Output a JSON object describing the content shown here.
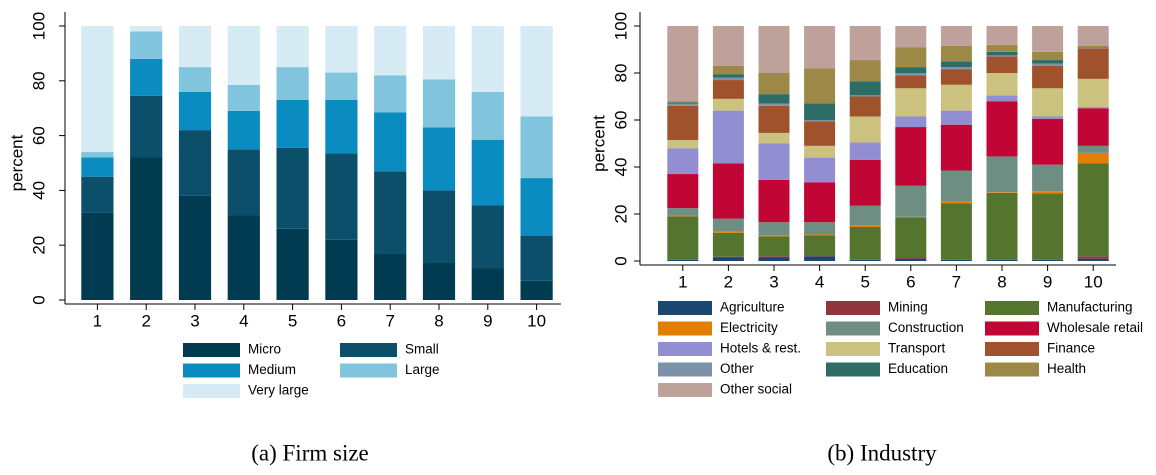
{
  "chart_data": [
    {
      "type": "stacked_bar",
      "ylabel": "percent",
      "caption": "(a) Firm size",
      "grid": false,
      "categories": [
        "1",
        "2",
        "3",
        "4",
        "5",
        "6",
        "7",
        "8",
        "9",
        "10"
      ],
      "ylim": [
        0,
        100
      ],
      "yticks": [
        0,
        20,
        40,
        60,
        80,
        100
      ],
      "series": [
        {
          "name": "Micro",
          "color": "#003b51",
          "values": [
            32,
            52,
            38,
            31,
            26,
            22,
            17,
            13.5,
            11.5,
            7
          ]
        },
        {
          "name": "Small",
          "color": "#0b4f6b",
          "values": [
            13,
            22.5,
            24,
            24,
            29.5,
            31.5,
            30,
            26.5,
            23,
            16.5
          ]
        },
        {
          "name": "Medium",
          "color": "#0a8cc1",
          "values": [
            7,
            13.5,
            14,
            14,
            17.5,
            19.5,
            21.5,
            23,
            24,
            21
          ]
        },
        {
          "name": "Large",
          "color": "#80c4de",
          "values": [
            2,
            10,
            9,
            9.5,
            12,
            10,
            13.5,
            17.5,
            17.5,
            22.5
          ]
        },
        {
          "name": "Very large",
          "color": "#d6ebf4",
          "values": [
            46,
            2,
            15,
            21.5,
            15,
            17,
            18,
            19.5,
            24,
            33
          ]
        }
      ]
    },
    {
      "type": "stacked_bar",
      "ylabel": "percent",
      "caption": "(b) Industry",
      "grid": false,
      "categories": [
        "1",
        "2",
        "3",
        "4",
        "5",
        "6",
        "7",
        "8",
        "9",
        "10"
      ],
      "ylim": [
        0,
        100
      ],
      "yticks": [
        0,
        20,
        40,
        60,
        80,
        100
      ],
      "series": [
        {
          "name": "Agriculture",
          "color": "#1a476f",
          "values": [
            0.5,
            1.5,
            1.5,
            2,
            0.5,
            1,
            0.5,
            0.5,
            0.5,
            1
          ]
        },
        {
          "name": "Mining",
          "color": "#90353b",
          "values": [
            0.3,
            0.3,
            0.5,
            0.5,
            0.3,
            0.5,
            0.3,
            0.3,
            0.3,
            1
          ]
        },
        {
          "name": "Manufacturing",
          "color": "#55752f",
          "values": [
            18.2,
            10.2,
            8.5,
            8.5,
            13.7,
            17,
            23.7,
            28.2,
            27.9,
            39.5
          ]
        },
        {
          "name": "Electricity",
          "color": "#e37e00",
          "values": [
            0.2,
            0.5,
            0.5,
            0.3,
            0.5,
            0.3,
            1,
            0.3,
            1,
            4.5
          ]
        },
        {
          "name": "Construction",
          "color": "#6e8e84",
          "values": [
            3.3,
            5.5,
            5.5,
            5.2,
            8.5,
            13.2,
            13,
            15.2,
            11.3,
            3
          ]
        },
        {
          "name": "Wholesale retail",
          "color": "#c10534",
          "values": [
            14.5,
            23.5,
            18,
            17,
            19.5,
            25,
            19.5,
            23.5,
            19.5,
            16
          ]
        },
        {
          "name": "Hotels & rest.",
          "color": "#938dd2",
          "values": [
            11,
            22.5,
            15.5,
            10.5,
            7.5,
            4.5,
            6,
            2.5,
            1,
            0.5
          ]
        },
        {
          "name": "Transport",
          "color": "#cac27e",
          "values": [
            3.5,
            5,
            4.5,
            5,
            11,
            12,
            11,
            9.5,
            12,
            12
          ]
        },
        {
          "name": "Finance",
          "color": "#a0522d",
          "values": [
            14.5,
            8,
            11.5,
            10.5,
            8.5,
            5.5,
            6.5,
            7,
            9.5,
            13
          ]
        },
        {
          "name": "Other",
          "color": "#7b92a8",
          "values": [
            1,
            1,
            1,
            0.5,
            0.5,
            1,
            1,
            0.5,
            1,
            0.2
          ]
        },
        {
          "name": "Education",
          "color": "#2d6d66",
          "values": [
            0.5,
            1.5,
            4,
            7,
            6,
            2.5,
            2.5,
            1.5,
            1.5,
            0.3
          ]
        },
        {
          "name": "Health",
          "color": "#9c8847",
          "values": [
            0.5,
            3.5,
            9,
            15,
            9,
            8.5,
            6.5,
            3,
            3.5,
            0.5
          ]
        },
        {
          "name": "Other social",
          "color": "#bfa19c",
          "values": [
            32,
            17,
            20,
            18,
            14.5,
            9,
            8.5,
            8,
            11,
            8.5
          ]
        }
      ]
    }
  ]
}
